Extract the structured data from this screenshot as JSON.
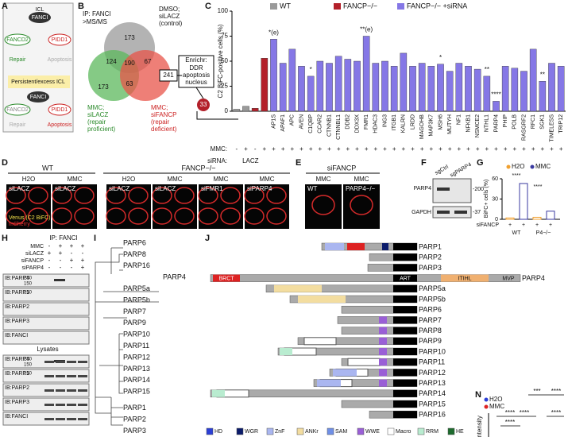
{
  "A": {
    "letter": "A",
    "t": [
      "ICL",
      "FANCI",
      "FANCD2",
      "PIDD1",
      "Repair",
      "Apoptosis",
      "Persistent/excess ICL",
      "FANCI",
      "FANCD2",
      "PIDD1",
      "Repair",
      "Apoptosis"
    ]
  },
  "B": {
    "letter": "B",
    "t": [
      "IP: FANCI",
      ">MS/MS",
      "DMSO;",
      "siLACZ",
      "(control)",
      "173",
      "124",
      "190",
      "67",
      "173",
      "63",
      "241",
      "MMC;",
      "siLACZ",
      "(repair",
      "proficient)",
      "MMC;",
      "siFANCP",
      "(repair",
      "deficient)",
      "Enrichr:",
      "DDR",
      "apoptosis",
      "nucleus",
      "33"
    ]
  },
  "chart_data": {
    "type": "bar",
    "letter": "C",
    "ylabel": "C2 BiFC-positive cells (%)",
    "ylim": [
      0,
      100
    ],
    "yticks": [
      0,
      25,
      50,
      75,
      100
    ],
    "categories": [
      null,
      null,
      null,
      null,
      "AP1S",
      "APAF1",
      "APC",
      "AVEN",
      "C1QBP",
      "CCAR2",
      "CTNNB1",
      "CTNNBL1",
      "DDB2",
      "DDX3X",
      "FMR1",
      "HDAC3",
      "ING3",
      "ITGB1",
      "KALRN",
      "LRDD",
      "MAGOHB",
      "MAP3K7",
      "MSH6",
      "MUTYH",
      "NF1",
      "NFKB1",
      "NSMCE2",
      "NTHL1",
      "PARP4",
      "PHIP",
      "POLB",
      "RASGRF2",
      "RFC1",
      "SGK1",
      "TIMELESS",
      "TRIP12"
    ],
    "series": [
      {
        "name": "WT",
        "color": "#9a9a9a",
        "values": [
          2,
          5,
          null,
          null,
          null,
          null,
          null,
          null,
          null,
          null,
          null,
          null,
          null,
          null,
          null,
          null,
          null,
          null,
          null,
          null,
          null,
          null,
          null,
          null,
          null,
          null,
          null,
          null,
          null,
          null,
          null,
          null,
          null,
          null,
          null,
          null
        ]
      },
      {
        "name": "FANCP−/−",
        "color": "#b3202a",
        "values": [
          null,
          null,
          3,
          53,
          null,
          null,
          null,
          null,
          null,
          null,
          null,
          null,
          null,
          null,
          null,
          null,
          null,
          null,
          null,
          null,
          null,
          null,
          null,
          null,
          null,
          null,
          null,
          null,
          null,
          null,
          null,
          null,
          null,
          null,
          null,
          null
        ]
      },
      {
        "name": "FANCP−/− +siRNA",
        "color": "#8577e6",
        "values": [
          null,
          null,
          null,
          null,
          72,
          48,
          62,
          45,
          35,
          50,
          48,
          55,
          52,
          50,
          75,
          48,
          50,
          45,
          58,
          45,
          48,
          45,
          47,
          40,
          48,
          45,
          42,
          35,
          10,
          45,
          43,
          40,
          62,
          30,
          48,
          45
        ]
      }
    ],
    "mmc_label": "MMC:",
    "mmc": [
      "-",
      "+",
      "-",
      "+",
      "+",
      "+",
      "+",
      "+",
      "+",
      "+",
      "+",
      "+",
      "+",
      "+",
      "+",
      "+",
      "+",
      "+",
      "+",
      "+",
      "+",
      "+",
      "+",
      "+",
      "+",
      "+",
      "+",
      "+",
      "+",
      "+",
      "+",
      "+",
      "+",
      "+",
      "+",
      "+"
    ],
    "sirna_label": "siRNA:",
    "control_sirna": "LACZ",
    "annotations": [
      {
        "label": "*(e)",
        "category": "AP1S"
      },
      {
        "label": "*",
        "category": "C1QBP"
      },
      {
        "label": "**(e)",
        "category": "FMR1"
      },
      {
        "label": "*",
        "category": "MSH6"
      },
      {
        "label": "**",
        "category": "NTHL1"
      },
      {
        "label": "****",
        "category": "PARP4"
      },
      {
        "label": "**",
        "category": "SGK1"
      }
    ]
  },
  "D": {
    "letter": "D",
    "t": [
      "WT",
      "FANCP−/−",
      "H2O",
      "MMC",
      "H2O",
      "MMC",
      "MMC",
      "MMC"
    ],
    "img": [
      "siLACZ",
      "siLACZ",
      "siLACZ",
      "siLACZ",
      "siFMR1",
      "siPARP4"
    ],
    "legend": [
      "Venus (C2 BiFC)",
      "mCherry"
    ]
  },
  "E": {
    "letter": "E",
    "t": [
      "siFANCP",
      "MMC",
      "MMC"
    ],
    "img": [
      "WT",
      "PARP4−/−"
    ]
  },
  "F": {
    "letter": "F",
    "t": [
      "sgCtrl",
      "sgPARP4",
      "PARP4",
      "GAPDH",
      "-200",
      "-37"
    ]
  },
  "G": {
    "letter": "G",
    "legend": [
      "H2O",
      "MMC"
    ],
    "ylabel": "BiFC+ cells (%)",
    "ylim": [
      0,
      60
    ],
    "yticks": [
      0,
      30,
      60
    ],
    "values": [
      2,
      53,
      3,
      12
    ],
    "row": "siFANCP",
    "signs": [
      "+",
      "+",
      "+",
      "+"
    ],
    "groups": [
      "WT",
      "P4−/−"
    ],
    "stars": [
      "****",
      "****"
    ]
  },
  "H": {
    "letter": "H",
    "ip": "IP: FANCI",
    "rows": [
      {
        "name": "MMC",
        "v": [
          "-",
          "+",
          "+",
          "+"
        ]
      },
      {
        "name": "siLACZ",
        "v": [
          "+",
          "+",
          "-",
          "-"
        ]
      },
      {
        "name": "siFANCP",
        "v": [
          "-",
          "-",
          "+",
          "+"
        ]
      },
      {
        "name": "siPARP4",
        "v": [
          "-",
          "-",
          "-",
          "+"
        ]
      }
    ],
    "ipblots": [
      {
        "name": "IB:PARP4",
        "m": [
          "250",
          "150"
        ]
      },
      {
        "name": "IB:PARP1",
        "m": [
          "150"
        ]
      },
      {
        "name": "IB:PARP2",
        "m": []
      },
      {
        "name": "IB:PARP3",
        "m": []
      },
      {
        "name": "IB:FANCI",
        "m": []
      }
    ],
    "lysates": "Lysates",
    "lysblots": [
      {
        "name": "IB:PARP4",
        "m": [
          "250",
          "150"
        ]
      },
      {
        "name": "IB:PARP1",
        "m": [
          "150"
        ]
      },
      {
        "name": "IB:PARP2",
        "m": []
      },
      {
        "name": "IB:PARP3",
        "m": []
      },
      {
        "name": "IB:FANCI",
        "m": []
      }
    ]
  },
  "I": {
    "letter": "I",
    "leaves": [
      "PARP6",
      "PARP8",
      "PARP16",
      "PARP4",
      "PARP5a",
      "PARP5b",
      "PARP7",
      "PARP9",
      "PARP10",
      "PARP11",
      "PARP12",
      "PARP13",
      "PARP14",
      "PARP15",
      "PARP1",
      "PARP2",
      "PARP3"
    ]
  },
  "J": {
    "letter": "J",
    "proteins": [
      "PARP1",
      "PARP2",
      "PARP3",
      "PARP4",
      "PARP5a",
      "PARP5b",
      "PARP6",
      "PARP7",
      "PARP8",
      "PARP9",
      "PARP10",
      "PARP11",
      "PARP12",
      "PARP13",
      "PARP14",
      "PARP15",
      "PARP16"
    ],
    "domains": [
      "BRCT",
      "ART",
      "ITIHL",
      "MVP"
    ],
    "legend": [
      "HD",
      "WGR",
      "ZnF",
      "ANKr",
      "SAM",
      "WWE",
      "Macro",
      "RRM",
      "HE"
    ]
  },
  "N": {
    "letter": "N",
    "legend": [
      "H2O",
      "MMC"
    ],
    "ylabel": "Intensity",
    "stars": [
      "****",
      "***",
      "****",
      "****",
      "****",
      "****"
    ]
  }
}
